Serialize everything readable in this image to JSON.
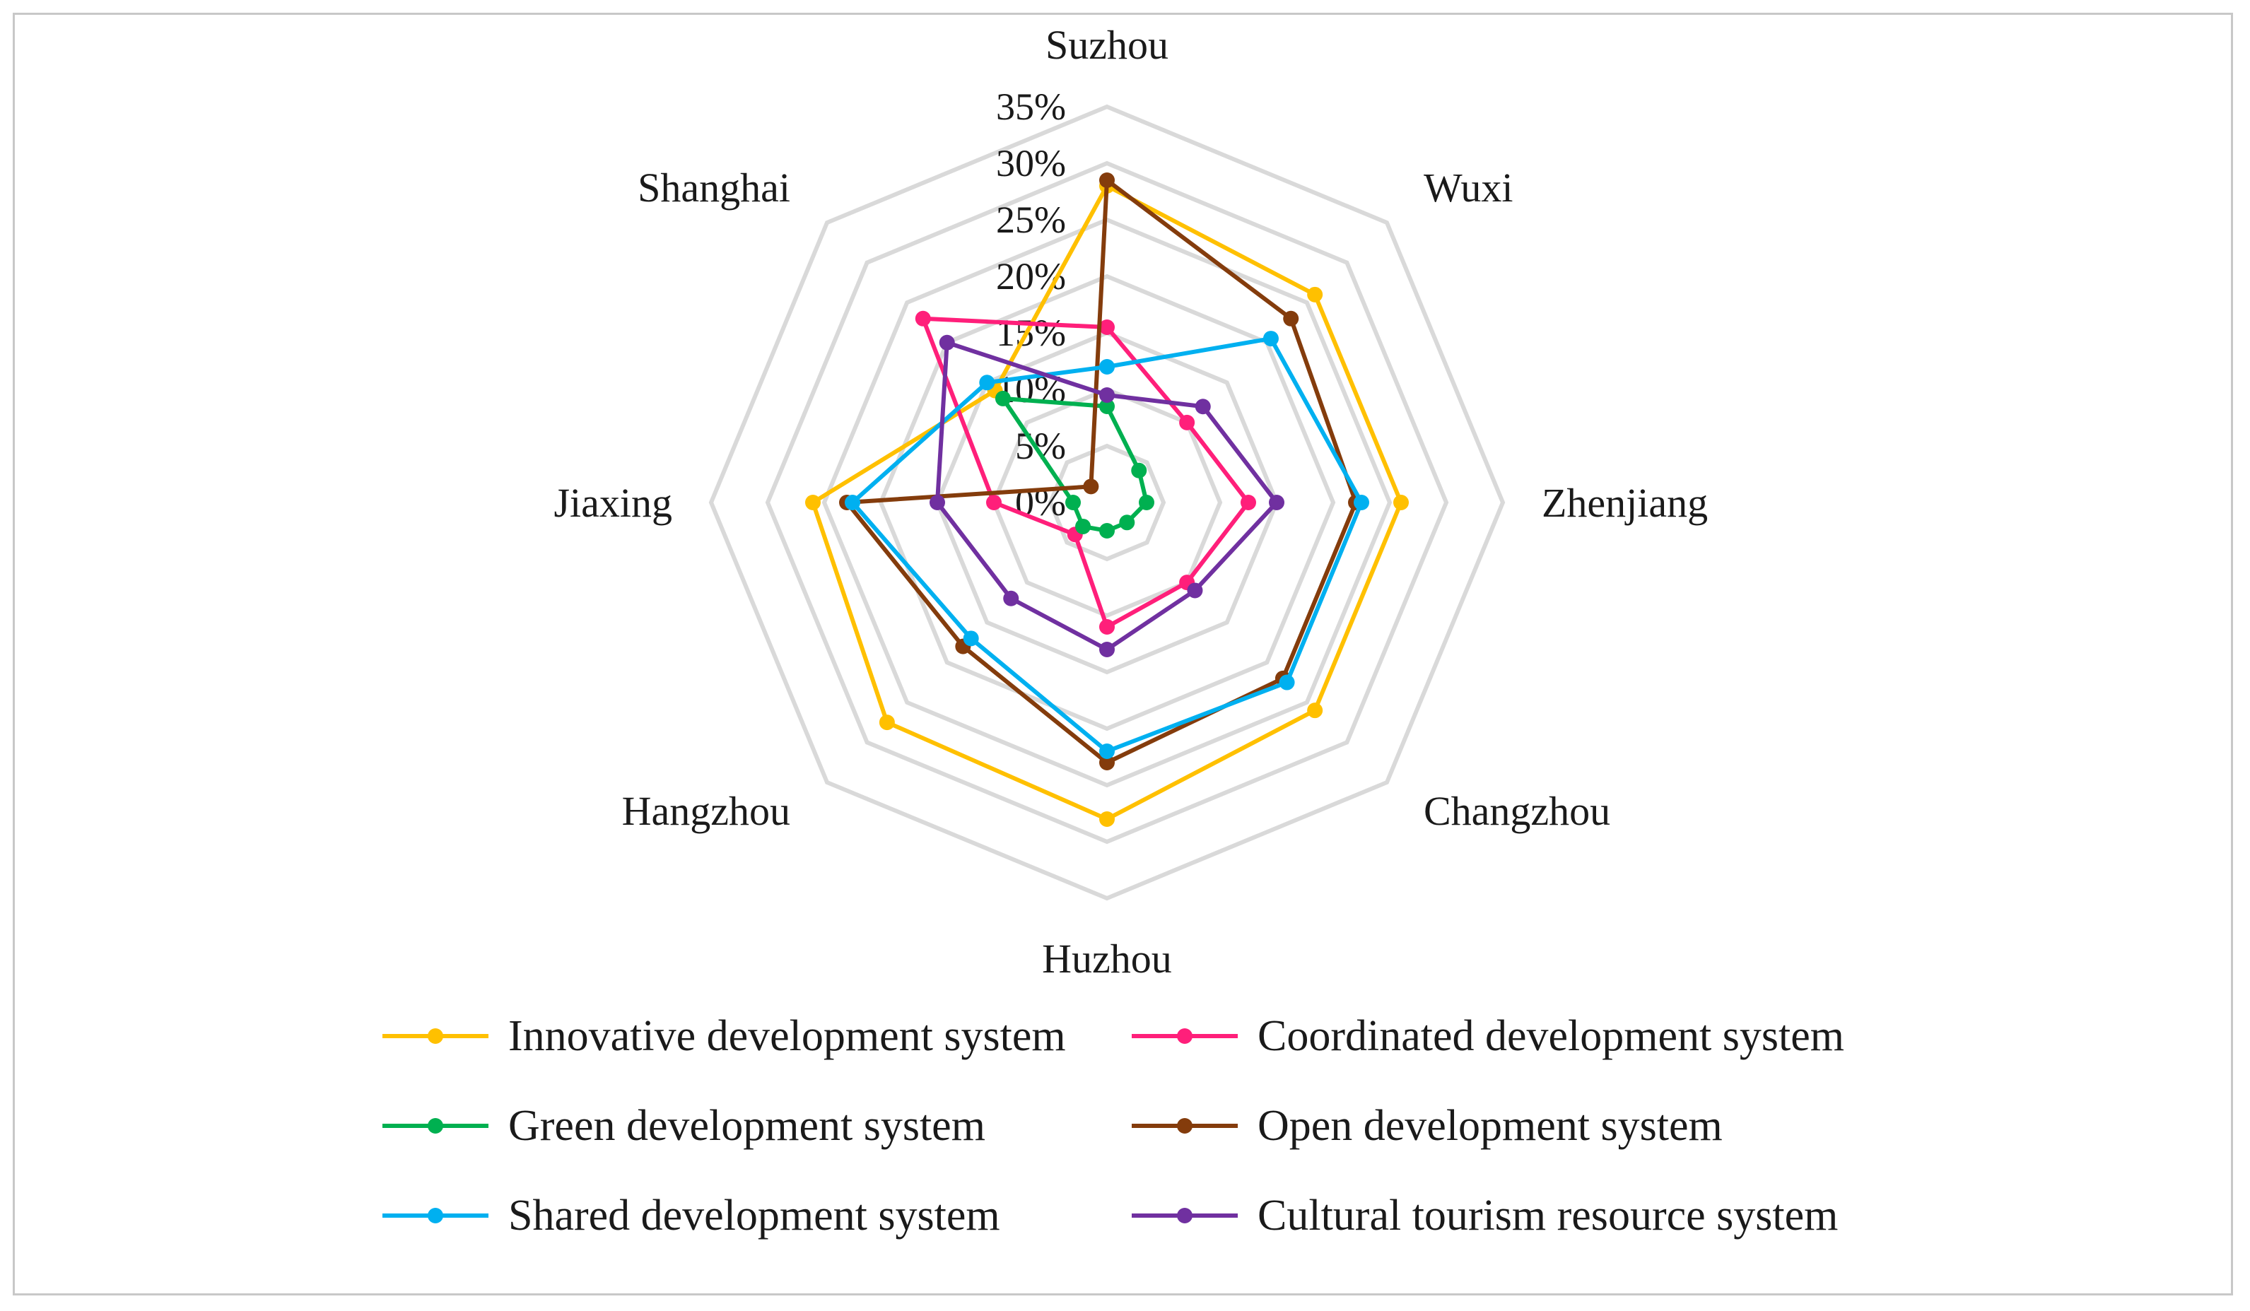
{
  "chart_data": {
    "type": "radar",
    "categories": [
      "Suzhou",
      "Wuxi",
      "Zhenjiang",
      "Changzhou",
      "Huzhou",
      "Hangzhou",
      "Jiaxing",
      "Shanghai"
    ],
    "r_ticks": [
      "0%",
      "5%",
      "10%",
      "15%",
      "20%",
      "25%",
      "30%",
      "35%"
    ],
    "rlim": [
      0,
      35
    ],
    "series": [
      {
        "name": "Innovative development system",
        "color": "#FFC000",
        "values": [
          28,
          26,
          26,
          26,
          28,
          27.5,
          26,
          14
        ]
      },
      {
        "name": "Coordinated development system",
        "color": "#FF1F7A",
        "values": [
          15.5,
          10,
          12.5,
          10,
          11,
          4,
          10,
          23
        ]
      },
      {
        "name": "Green development system",
        "color": "#00B050",
        "values": [
          8.5,
          4,
          3.5,
          2.5,
          2.5,
          3,
          3,
          13
        ]
      },
      {
        "name": "Open development system",
        "color": "#843C0C",
        "values": [
          28.5,
          23,
          22,
          22,
          23,
          18,
          23,
          2
        ]
      },
      {
        "name": "Shared development system",
        "color": "#00B0F0",
        "values": [
          12,
          20.5,
          22.5,
          22.5,
          22,
          17,
          22.5,
          15
        ]
      },
      {
        "name": "Cultural tourism resource system",
        "color": "#7030A0",
        "values": [
          9.5,
          12,
          15,
          11,
          13,
          12,
          15,
          20
        ]
      }
    ],
    "legend_position": "bottom",
    "grid": true
  }
}
